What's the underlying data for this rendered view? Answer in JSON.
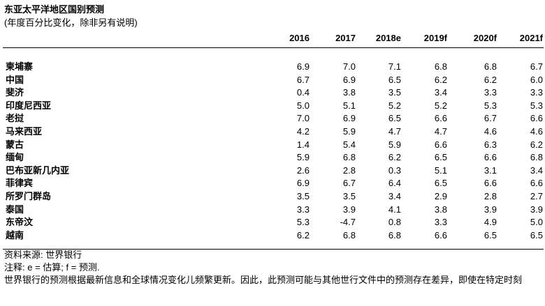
{
  "header": {
    "title": "东亚太平洋地区国别预测",
    "subtitle": "(年度百分比变化，除非另有说明)"
  },
  "table": {
    "columns": [
      "2016",
      "2017",
      "2018e",
      "2019f",
      "2020f",
      "2021f"
    ],
    "rows": [
      [
        "柬埔寨",
        "6.9",
        "7.0",
        "7.1",
        "6.8",
        "6.8",
        "6.7"
      ],
      [
        "中国",
        "6.7",
        "6.9",
        "6.5",
        "6.2",
        "6.2",
        "6.0"
      ],
      [
        "斐济",
        "0.4",
        "3.8",
        "3.5",
        "3.4",
        "3.3",
        "3.3"
      ],
      [
        "印度尼西亚",
        "5.0",
        "5.1",
        "5.2",
        "5.2",
        "5.3",
        "5.3"
      ],
      [
        "老挝",
        "7.0",
        "6.9",
        "6.5",
        "6.6",
        "6.7",
        "6.6"
      ],
      [
        "马来西亚",
        "4.2",
        "5.9",
        "4.7",
        "4.7",
        "4.6",
        "4.6"
      ],
      [
        "蒙古",
        "1.4",
        "5.4",
        "5.9",
        "6.6",
        "6.3",
        "6.2"
      ],
      [
        "缅甸",
        "5.9",
        "6.8",
        "6.2",
        "6.5",
        "6.6",
        "6.8"
      ],
      [
        "巴布亚新几内亚",
        "2.6",
        "2.8",
        "0.3",
        "5.1",
        "3.1",
        "3.4"
      ],
      [
        "菲律宾",
        "6.9",
        "6.7",
        "6.4",
        "6.5",
        "6.6",
        "6.6"
      ],
      [
        "所罗门群岛",
        "3.5",
        "3.5",
        "3.4",
        "2.9",
        "2.8",
        "2.7"
      ],
      [
        "泰国",
        "3.3",
        "3.9",
        "4.1",
        "3.8",
        "3.9",
        "3.9"
      ],
      [
        "东帝汶",
        "5.3",
        "-4.7",
        "0.8",
        "3.3",
        "4.9",
        "5.0"
      ],
      [
        "越南",
        "6.2",
        "6.8",
        "6.8",
        "6.6",
        "6.5",
        "6.5"
      ]
    ]
  },
  "notes": [
    "资料来源: 世界银行",
    "注释: e = 估算; f = 预测.",
    "世界银行的预测根据最新信息和全球情况变化儿频繁更新。因此，此预测可能与其他世行文件中的预测存在差异，即使在特定时刻"
  ]
}
